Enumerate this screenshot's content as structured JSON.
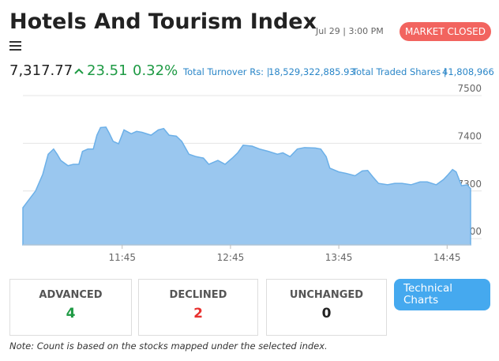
{
  "header": {
    "title": "Hotels And Tourism Index",
    "datetime": "Jul 29 | 3:00 PM",
    "status": "MARKET CLOSED"
  },
  "quote": {
    "price": "7,317.77",
    "change": "23.51",
    "change_percent": "0.32%",
    "turnover_label": "Total Turnover Rs: |",
    "turnover": "18,529,322,885.93",
    "shares_label": "Total Traded Shares |",
    "shares": "41,808,966"
  },
  "chart_data": {
    "type": "area",
    "color": "#9ac7ef",
    "line_color": "#6cb0e8",
    "grid": true,
    "x": [
      "10:50",
      "10:57",
      "11:01",
      "11:04",
      "11:07",
      "11:09",
      "11:11",
      "11:15",
      "11:18",
      "11:21",
      "11:23",
      "11:26",
      "11:29",
      "11:31",
      "11:33",
      "11:36",
      "11:38",
      "11:40",
      "11:43",
      "11:46",
      "11:50",
      "11:53",
      "11:56",
      "12:01",
      "12:05",
      "12:08",
      "12:11",
      "12:15",
      "12:18",
      "12:22",
      "12:26",
      "12:30",
      "12:33",
      "12:38",
      "12:42",
      "12:46",
      "12:49",
      "12:52",
      "12:57",
      "13:01",
      "13:06",
      "13:11",
      "13:14",
      "13:18",
      "13:22",
      "13:26",
      "13:32",
      "13:35",
      "13:38",
      "13:40",
      "13:45",
      "13:49",
      "13:54",
      "13:58",
      "14:01",
      "14:04",
      "14:07",
      "14:12",
      "14:16",
      "14:20",
      "14:25",
      "14:30",
      "14:34",
      "14:39",
      "14:43",
      "14:45",
      "14:48",
      "14:50",
      "14:53",
      "14:56",
      "14:58"
    ],
    "values": [
      7265,
      7300,
      7335,
      7377,
      7388,
      7377,
      7364,
      7353,
      7356,
      7356,
      7383,
      7388,
      7388,
      7417,
      7433,
      7434,
      7420,
      7404,
      7399,
      7428,
      7420,
      7425,
      7423,
      7417,
      7428,
      7431,
      7417,
      7415,
      7404,
      7377,
      7372,
      7369,
      7356,
      7364,
      7356,
      7369,
      7380,
      7396,
      7394,
      7388,
      7383,
      7377,
      7380,
      7372,
      7388,
      7391,
      7390,
      7388,
      7372,
      7348,
      7340,
      7337,
      7332,
      7342,
      7343,
      7329,
      7316,
      7313,
      7316,
      7316,
      7313,
      7319,
      7319,
      7313,
      7324,
      7332,
      7345,
      7340,
      7311,
      7313,
      7305
    ],
    "xlim": [
      "10:50",
      "14:58"
    ],
    "xticks": [
      "11:45",
      "12:45",
      "13:45",
      "14:45"
    ],
    "ylim": [
      7187,
      7500
    ],
    "yticks": [
      7200,
      7300,
      7400,
      7500
    ]
  },
  "cards": [
    {
      "label": "ADVANCED",
      "value": 4,
      "color": "#1e9a44"
    },
    {
      "label": "DECLINED",
      "value": 2,
      "color": "#e8312f"
    },
    {
      "label": "UNCHANGED",
      "value": 0,
      "color": "#222"
    }
  ],
  "button": "Technical Charts",
  "note": "Note: Count is based on the stocks mapped under the selected index."
}
